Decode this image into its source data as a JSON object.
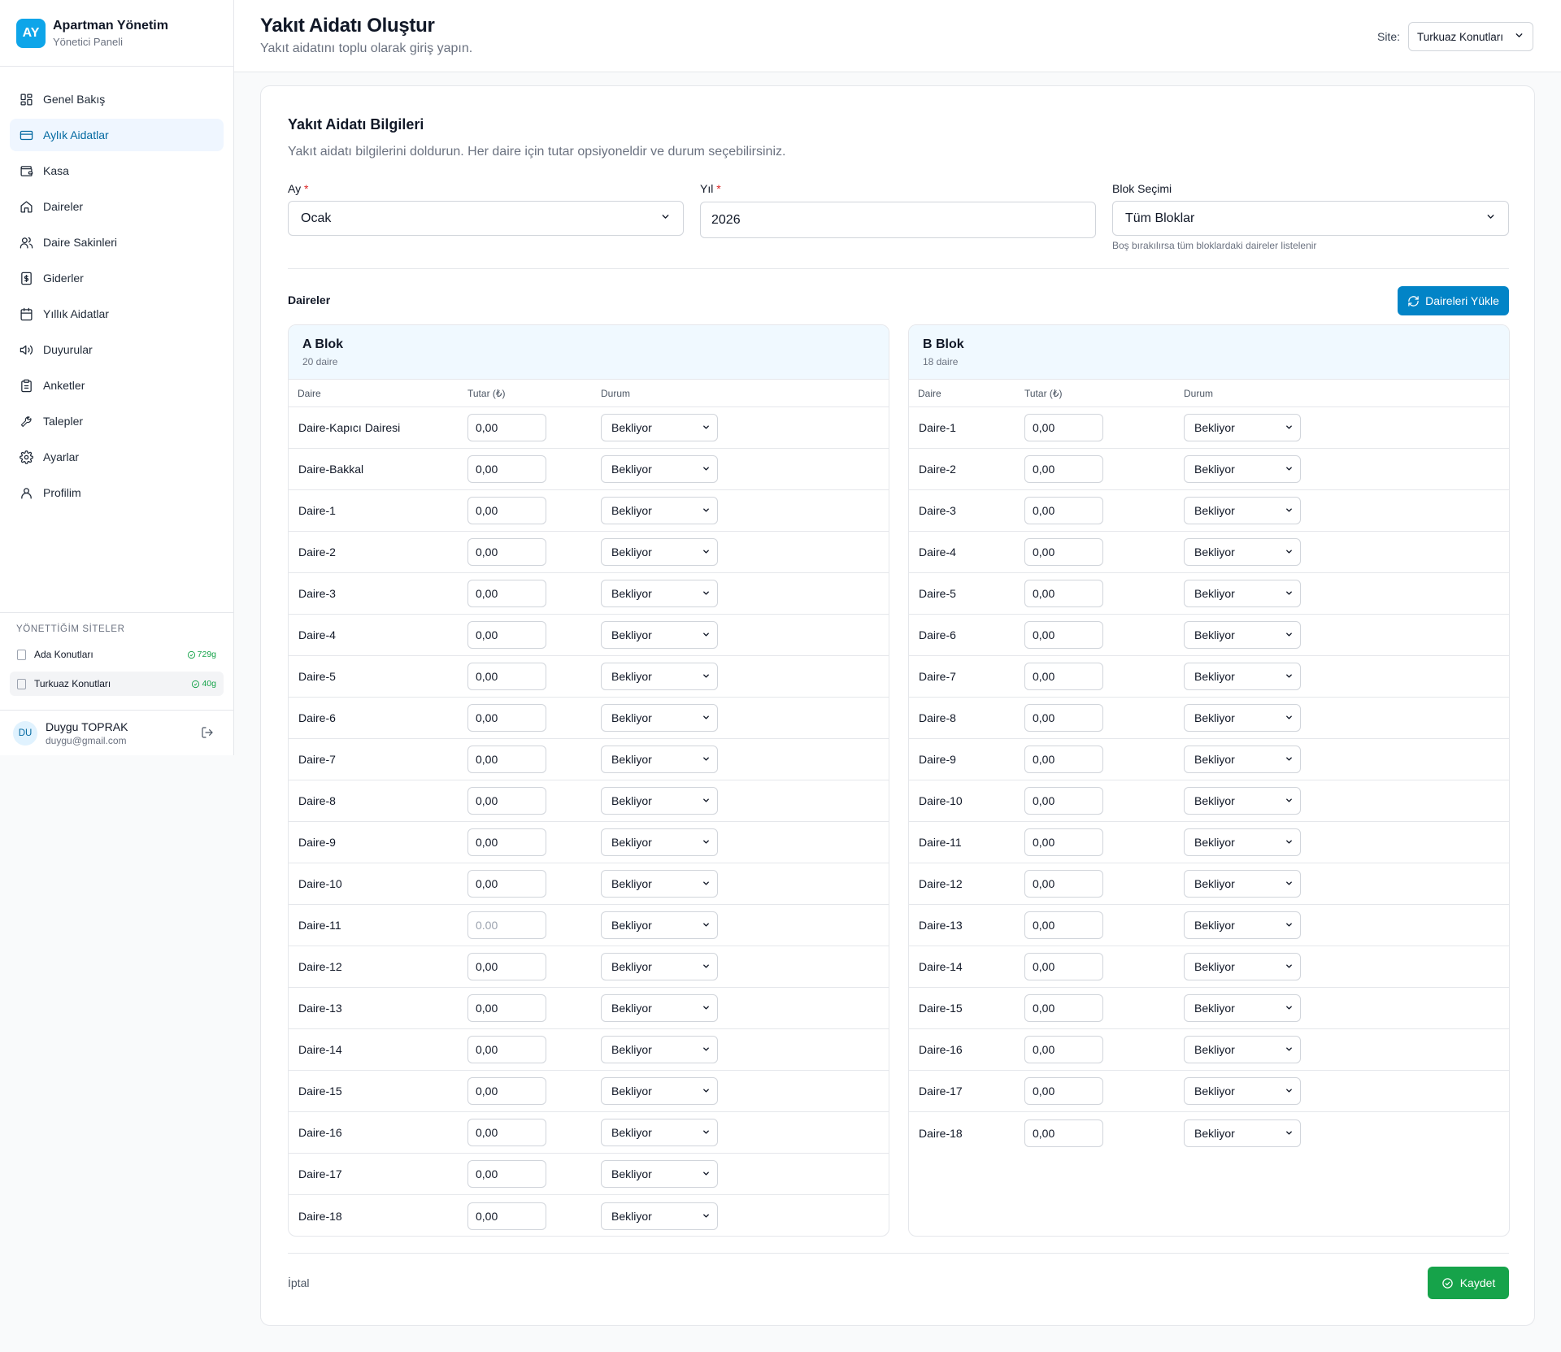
{
  "brand": {
    "logo": "AY",
    "title": "Apartman Yönetim",
    "subtitle": "Yönetici Paneli"
  },
  "nav": [
    {
      "label": "Genel Bakış",
      "icon": "dashboard-icon",
      "active": false
    },
    {
      "label": "Aylık Aidatlar",
      "icon": "credit-card-icon",
      "active": true
    },
    {
      "label": "Kasa",
      "icon": "wallet-icon",
      "active": false
    },
    {
      "label": "Daireler",
      "icon": "home-icon",
      "active": false
    },
    {
      "label": "Daire Sakinleri",
      "icon": "users-icon",
      "active": false
    },
    {
      "label": "Giderler",
      "icon": "receipt-icon",
      "active": false
    },
    {
      "label": "Yıllık Aidatlar",
      "icon": "calendar-icon",
      "active": false
    },
    {
      "label": "Duyurular",
      "icon": "megaphone-icon",
      "active": false
    },
    {
      "label": "Anketler",
      "icon": "clipboard-icon",
      "active": false
    },
    {
      "label": "Talepler",
      "icon": "wrench-icon",
      "active": false
    },
    {
      "label": "Ayarlar",
      "icon": "gear-icon",
      "active": false
    },
    {
      "label": "Profilim",
      "icon": "user-icon",
      "active": false
    }
  ],
  "sites": {
    "title": "YÖNETTİĞİM SİTELER",
    "items": [
      {
        "name": "Ada Konutları",
        "badge": "729g",
        "active": false
      },
      {
        "name": "Turkuaz Konutları",
        "badge": "40g",
        "active": true
      }
    ]
  },
  "user": {
    "initials": "DU",
    "name": "Duygu TOPRAK",
    "email": "duygu@gmail.com"
  },
  "header": {
    "title": "Yakıt Aidatı Oluştur",
    "subtitle": "Yakıt aidatını toplu olarak giriş yapın.",
    "site_label": "Site:",
    "site_value": "Turkuaz Konutları"
  },
  "form": {
    "title": "Yakıt Aidatı Bilgileri",
    "description": "Yakıt aidatı bilgilerini doldurun. Her daire için tutar opsiyoneldir ve durum seçebilirsiniz.",
    "month_label": "Ay",
    "month_value": "Ocak",
    "year_label": "Yıl",
    "year_value": "2026",
    "block_label": "Blok Seçimi",
    "block_value": "Tüm Bloklar",
    "block_hint": "Boş bırakılırsa tüm bloklardaki daireler listelenir",
    "required_mark": "*"
  },
  "apartments": {
    "label": "Daireler",
    "load_button": "Daireleri Yükle",
    "columns": {
      "unit": "Daire",
      "amount": "Tutar (₺)",
      "status": "Durum"
    },
    "blocks": [
      {
        "name": "A Blok",
        "count": "20 daire",
        "rows": [
          {
            "unit": "Daire-Kapıcı Dairesi",
            "amount": "0,00",
            "status": "Bekliyor"
          },
          {
            "unit": "Daire-Bakkal",
            "amount": "0,00",
            "status": "Bekliyor"
          },
          {
            "unit": "Daire-1",
            "amount": "0,00",
            "status": "Bekliyor"
          },
          {
            "unit": "Daire-2",
            "amount": "0,00",
            "status": "Bekliyor"
          },
          {
            "unit": "Daire-3",
            "amount": "0,00",
            "status": "Bekliyor"
          },
          {
            "unit": "Daire-4",
            "amount": "0,00",
            "status": "Bekliyor"
          },
          {
            "unit": "Daire-5",
            "amount": "0,00",
            "status": "Bekliyor"
          },
          {
            "unit": "Daire-6",
            "amount": "0,00",
            "status": "Bekliyor"
          },
          {
            "unit": "Daire-7",
            "amount": "0,00",
            "status": "Bekliyor"
          },
          {
            "unit": "Daire-8",
            "amount": "0,00",
            "status": "Bekliyor"
          },
          {
            "unit": "Daire-9",
            "amount": "0,00",
            "status": "Bekliyor"
          },
          {
            "unit": "Daire-10",
            "amount": "0,00",
            "status": "Bekliyor"
          },
          {
            "unit": "Daire-11",
            "amount": "",
            "placeholder": "0.00",
            "status": "Bekliyor"
          },
          {
            "unit": "Daire-12",
            "amount": "0,00",
            "status": "Bekliyor"
          },
          {
            "unit": "Daire-13",
            "amount": "0,00",
            "status": "Bekliyor"
          },
          {
            "unit": "Daire-14",
            "amount": "0,00",
            "status": "Bekliyor"
          },
          {
            "unit": "Daire-15",
            "amount": "0,00",
            "status": "Bekliyor"
          },
          {
            "unit": "Daire-16",
            "amount": "0,00",
            "status": "Bekliyor"
          },
          {
            "unit": "Daire-17",
            "amount": "0,00",
            "status": "Bekliyor"
          },
          {
            "unit": "Daire-18",
            "amount": "0,00",
            "status": "Bekliyor"
          }
        ]
      },
      {
        "name": "B Blok",
        "count": "18 daire",
        "rows": [
          {
            "unit": "Daire-1",
            "amount": "0,00",
            "status": "Bekliyor"
          },
          {
            "unit": "Daire-2",
            "amount": "0,00",
            "status": "Bekliyor"
          },
          {
            "unit": "Daire-3",
            "amount": "0,00",
            "status": "Bekliyor"
          },
          {
            "unit": "Daire-4",
            "amount": "0,00",
            "status": "Bekliyor"
          },
          {
            "unit": "Daire-5",
            "amount": "0,00",
            "status": "Bekliyor"
          },
          {
            "unit": "Daire-6",
            "amount": "0,00",
            "status": "Bekliyor"
          },
          {
            "unit": "Daire-7",
            "amount": "0,00",
            "status": "Bekliyor"
          },
          {
            "unit": "Daire-8",
            "amount": "0,00",
            "status": "Bekliyor"
          },
          {
            "unit": "Daire-9",
            "amount": "0,00",
            "status": "Bekliyor"
          },
          {
            "unit": "Daire-10",
            "amount": "0,00",
            "status": "Bekliyor"
          },
          {
            "unit": "Daire-11",
            "amount": "0,00",
            "status": "Bekliyor"
          },
          {
            "unit": "Daire-12",
            "amount": "0,00",
            "status": "Bekliyor"
          },
          {
            "unit": "Daire-13",
            "amount": "0,00",
            "status": "Bekliyor"
          },
          {
            "unit": "Daire-14",
            "amount": "0,00",
            "status": "Bekliyor"
          },
          {
            "unit": "Daire-15",
            "amount": "0,00",
            "status": "Bekliyor"
          },
          {
            "unit": "Daire-16",
            "amount": "0,00",
            "status": "Bekliyor"
          },
          {
            "unit": "Daire-17",
            "amount": "0,00",
            "status": "Bekliyor"
          },
          {
            "unit": "Daire-18",
            "amount": "0,00",
            "status": "Bekliyor"
          }
        ]
      }
    ]
  },
  "footer": {
    "cancel_label": "İptal",
    "save_label": "Kaydet"
  },
  "colors": {
    "primary": "#0284c7",
    "success": "#16a34a",
    "active_nav_bg": "#eff6ff",
    "block_header_bg": "#f0f9ff"
  }
}
